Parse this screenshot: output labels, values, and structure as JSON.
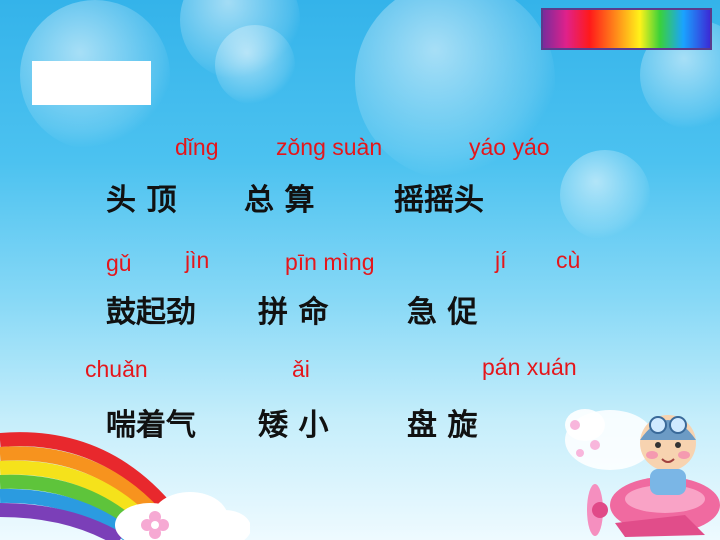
{
  "rows": [
    {
      "pinyin": [
        "dǐng",
        "zǒng  suàn",
        "yáo yáo"
      ],
      "words": [
        "头  顶",
        "总  算",
        "摇摇头"
      ]
    },
    {
      "pinyin": [
        "gǔ",
        "jìn",
        "pīn   mìng",
        "jí",
        "cù"
      ],
      "words": [
        "鼓起劲",
        "拼  命",
        "急  促"
      ]
    },
    {
      "pinyin": [
        "chuǎn",
        "ǎi",
        "pán  xuán"
      ],
      "words": [
        "喘着气",
        "矮  小",
        "盘  旋"
      ]
    }
  ],
  "icons": [
    "rainbow-bar-icon",
    "rainbow-arc-icon",
    "cartoon-pilot-plane-icon",
    "flower-icon"
  ]
}
